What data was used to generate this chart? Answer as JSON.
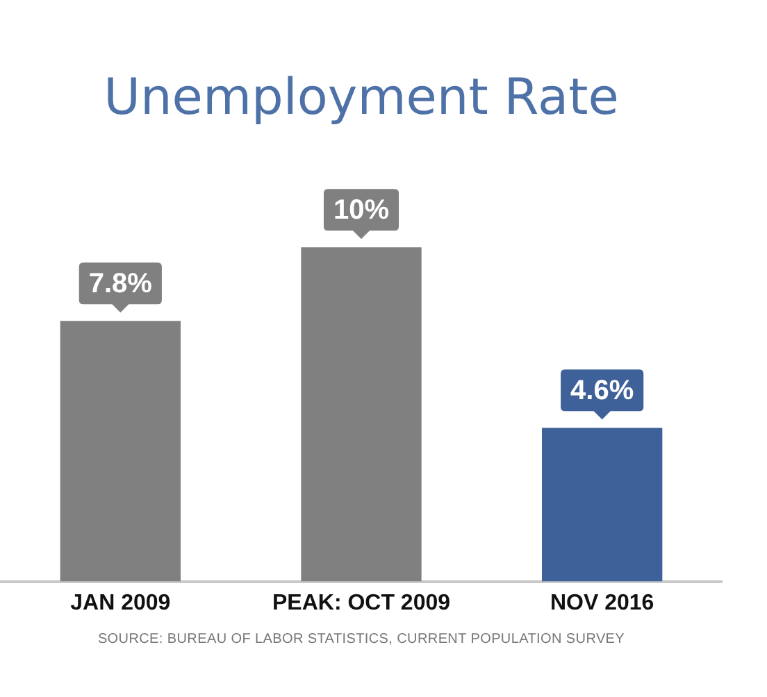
{
  "chart_data": {
    "type": "bar",
    "title": "Unemployment Rate",
    "categories": [
      "JAN 2009",
      "PEAK: OCT 2009",
      "NOV 2016"
    ],
    "values": [
      7.8,
      10,
      4.6
    ],
    "colors": [
      "#808080",
      "#808080",
      "#3f6199"
    ],
    "value_labels": [
      "7.8%",
      "10%",
      "4.6%"
    ],
    "annotations": [
      "SOURCE: BUREAU OF LABOR STATISTICS, CURRENT POPULATION SURVEY"
    ],
    "grid": false,
    "legend": false
  }
}
